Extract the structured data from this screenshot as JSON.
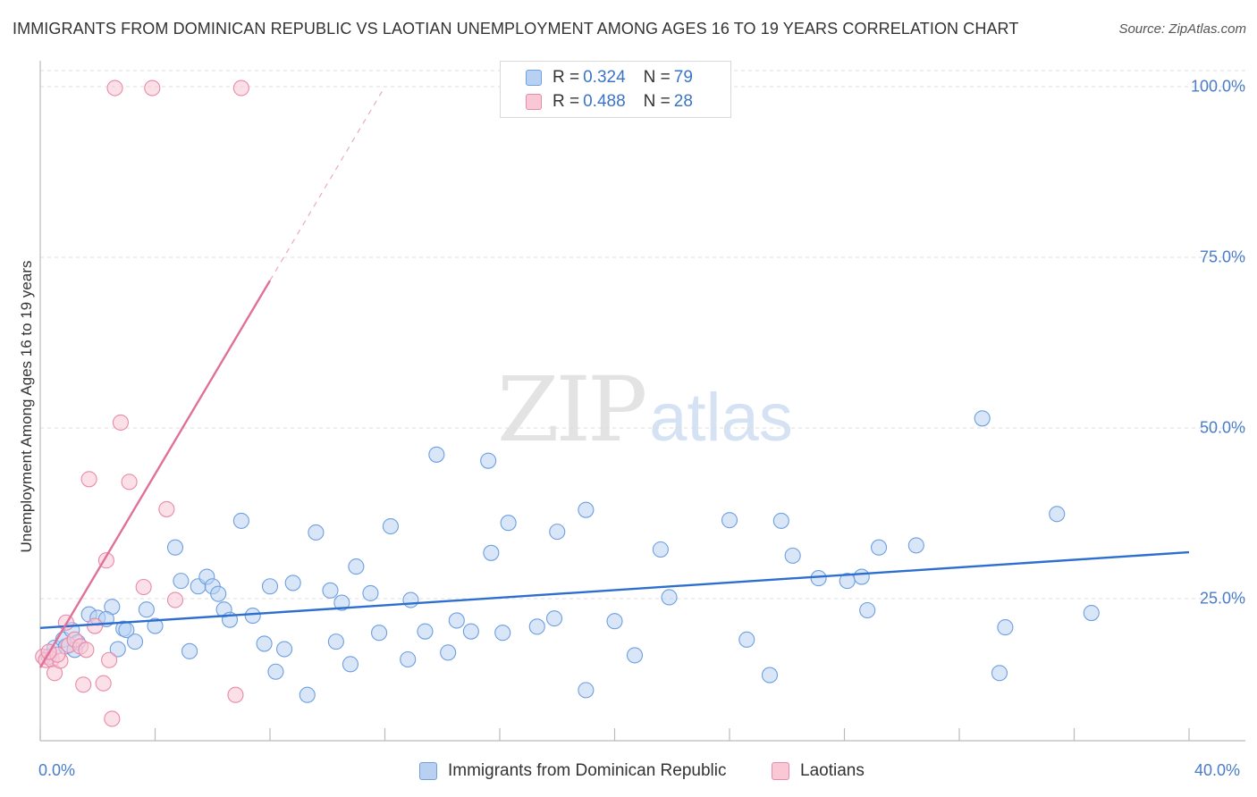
{
  "title": "IMMIGRANTS FROM DOMINICAN REPUBLIC VS LAOTIAN UNEMPLOYMENT AMONG AGES 16 TO 19 YEARS CORRELATION CHART",
  "source": "Source: ZipAtlas.com",
  "watermark": {
    "zip": "ZIP",
    "atlas": "atlas"
  },
  "legend": {
    "rows": [
      {
        "r_label": "R = ",
        "r_value": "0.324",
        "n_label": "N = ",
        "n_value": "79",
        "color": "#b8d1f3",
        "border": "#6e9fe0"
      },
      {
        "r_label": "R = ",
        "r_value": "0.488",
        "n_label": "N = ",
        "n_value": "28",
        "color": "#f9c7d5",
        "border": "#e88aa8"
      }
    ]
  },
  "chart_data": {
    "type": "scatter",
    "title": "IMMIGRANTS FROM DOMINICAN REPUBLIC VS LAOTIAN UNEMPLOYMENT AMONG AGES 16 TO 19 YEARS CORRELATION CHART",
    "xlabel": "",
    "ylabel": "Unemployment Among Ages 16 to 19 years",
    "xlim": [
      0,
      40
    ],
    "ylim": [
      0,
      102
    ],
    "x_tick_labels": [
      "0.0%",
      "40.0%"
    ],
    "y_ticks": [
      {
        "value": 25,
        "label": "25.0%"
      },
      {
        "value": 50,
        "label": "50.0%"
      },
      {
        "value": 75,
        "label": "75.0%"
      },
      {
        "value": 100,
        "label": "100.0%"
      }
    ],
    "grid": true,
    "legend_position": "bottom",
    "series": [
      {
        "name": "Immigrants from Dominican Republic",
        "color": "#6e9fe0",
        "fill": "#b8d1f3",
        "trend": {
          "x0": 0,
          "y0": 20.7,
          "x1": 40,
          "y1": 31.8,
          "color": "#2d6fcf",
          "dashed_extension": false
        },
        "points": [
          [
            0.3,
            16.5
          ],
          [
            0.5,
            17.8
          ],
          [
            0.8,
            19.0
          ],
          [
            1.1,
            20.4
          ],
          [
            1.3,
            18.6
          ],
          [
            1.7,
            22.7
          ],
          [
            2.0,
            22.2
          ],
          [
            2.5,
            23.8
          ],
          [
            2.7,
            17.6
          ],
          [
            2.9,
            20.6
          ],
          [
            3.0,
            20.4
          ],
          [
            3.3,
            18.7
          ],
          [
            3.7,
            23.4
          ],
          [
            4.7,
            32.5
          ],
          [
            4.9,
            27.6
          ],
          [
            5.2,
            17.3
          ],
          [
            5.5,
            26.8
          ],
          [
            5.8,
            28.2
          ],
          [
            6.0,
            26.8
          ],
          [
            6.2,
            25.7
          ],
          [
            6.4,
            23.4
          ],
          [
            6.6,
            21.9
          ],
          [
            7.0,
            36.4
          ],
          [
            7.4,
            22.5
          ],
          [
            7.8,
            18.4
          ],
          [
            8.0,
            26.8
          ],
          [
            8.2,
            14.3
          ],
          [
            8.5,
            17.6
          ],
          [
            8.8,
            27.3
          ],
          [
            9.3,
            10.9
          ],
          [
            9.6,
            34.7
          ],
          [
            10.1,
            26.2
          ],
          [
            10.3,
            18.7
          ],
          [
            10.5,
            24.4
          ],
          [
            10.8,
            15.4
          ],
          [
            11.0,
            29.7
          ],
          [
            11.5,
            25.8
          ],
          [
            11.8,
            20.0
          ],
          [
            12.2,
            35.6
          ],
          [
            12.8,
            16.1
          ],
          [
            12.9,
            24.8
          ],
          [
            13.4,
            20.2
          ],
          [
            13.8,
            46.1
          ],
          [
            14.2,
            17.1
          ],
          [
            14.5,
            21.8
          ],
          [
            15.0,
            20.2
          ],
          [
            15.6,
            45.2
          ],
          [
            15.7,
            31.7
          ],
          [
            16.1,
            20.0
          ],
          [
            16.3,
            36.1
          ],
          [
            17.3,
            20.9
          ],
          [
            17.9,
            22.1
          ],
          [
            18.0,
            34.8
          ],
          [
            19.0,
            11.6
          ],
          [
            19.0,
            38.0
          ],
          [
            20.0,
            21.7
          ],
          [
            20.7,
            16.7
          ],
          [
            21.6,
            32.2
          ],
          [
            21.9,
            25.2
          ],
          [
            24.0,
            36.5
          ],
          [
            24.6,
            19.0
          ],
          [
            25.4,
            13.8
          ],
          [
            25.8,
            36.4
          ],
          [
            26.2,
            31.3
          ],
          [
            27.1,
            28.0
          ],
          [
            28.1,
            27.6
          ],
          [
            28.6,
            28.2
          ],
          [
            28.8,
            23.3
          ],
          [
            29.2,
            32.5
          ],
          [
            30.5,
            32.8
          ],
          [
            32.8,
            51.4
          ],
          [
            33.4,
            14.1
          ],
          [
            33.6,
            20.8
          ],
          [
            35.4,
            37.4
          ],
          [
            36.6,
            22.9
          ],
          [
            0.9,
            18.0
          ],
          [
            1.2,
            17.5
          ],
          [
            2.3,
            22.0
          ],
          [
            4.0,
            21.0
          ]
        ]
      },
      {
        "name": "Laotians",
        "color": "#e88aa8",
        "fill": "#f9c7d5",
        "trend": {
          "x0": 0,
          "y0": 14.9,
          "x1": 8.0,
          "y1": 71.6,
          "color": "#e0709a",
          "dashed_extension": true,
          "x2": 12.0,
          "y2": 100.0
        },
        "points": [
          [
            0.1,
            16.5
          ],
          [
            0.2,
            16.0
          ],
          [
            0.4,
            16.1
          ],
          [
            0.5,
            14.1
          ],
          [
            0.7,
            15.9
          ],
          [
            0.9,
            21.5
          ],
          [
            1.0,
            18.2
          ],
          [
            1.2,
            19.0
          ],
          [
            1.4,
            18.0
          ],
          [
            1.5,
            12.4
          ],
          [
            1.6,
            17.5
          ],
          [
            1.7,
            42.5
          ],
          [
            1.9,
            21.0
          ],
          [
            2.2,
            12.6
          ],
          [
            2.3,
            30.6
          ],
          [
            2.4,
            16.0
          ],
          [
            2.5,
            7.4
          ],
          [
            2.6,
            99.8
          ],
          [
            2.8,
            50.8
          ],
          [
            3.1,
            42.1
          ],
          [
            3.6,
            26.7
          ],
          [
            3.9,
            99.8
          ],
          [
            4.4,
            38.1
          ],
          [
            4.7,
            24.8
          ],
          [
            6.8,
            10.9
          ],
          [
            7.0,
            99.8
          ],
          [
            0.6,
            16.8
          ],
          [
            0.3,
            17.2
          ]
        ]
      }
    ]
  }
}
